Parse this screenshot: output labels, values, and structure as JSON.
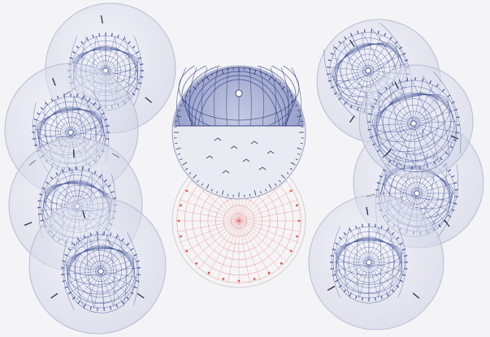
{
  "scene": {
    "background": "#f4f4f6",
    "disc_fill": "#e7e9f3",
    "disc_edge": "#b9bdd2",
    "grid_color": "#3d4f96",
    "red_grid_color": "#e0584f",
    "dark_overlay": "#5c6aa8"
  }
}
